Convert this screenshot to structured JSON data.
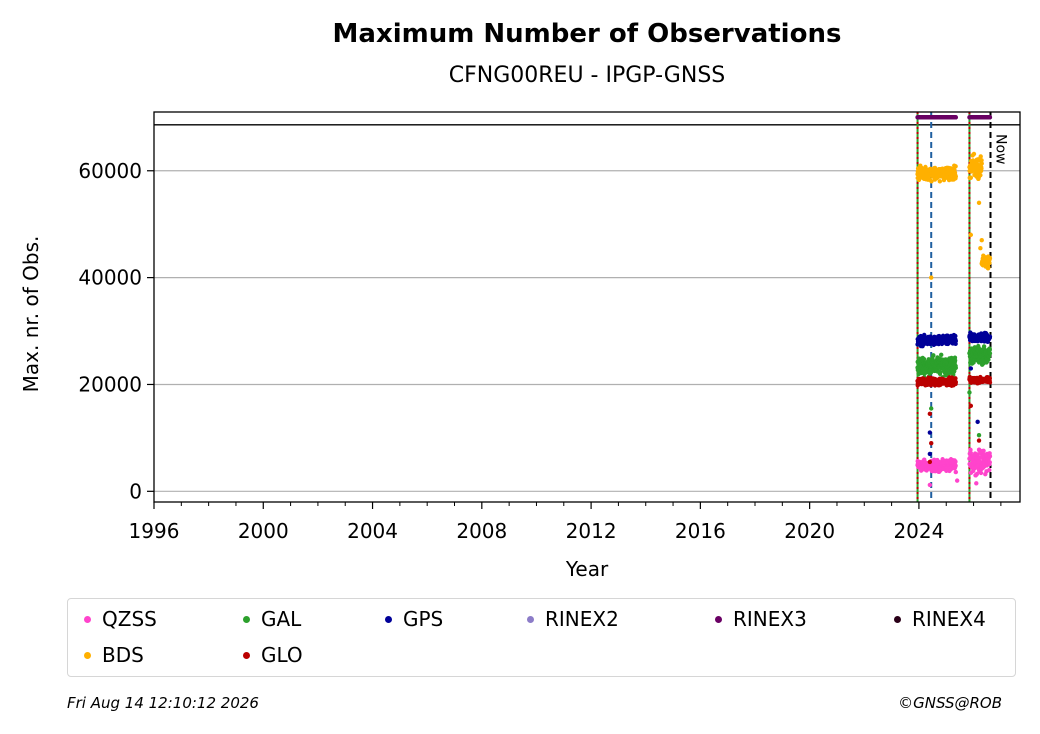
{
  "chart_data": {
    "type": "scatter",
    "title": "Maximum Number of Observations",
    "subtitle": "CFNG00REU - IPGP-GNSS",
    "xlabel": "Year",
    "ylabel": "Max. nr. of Obs.",
    "xlim": [
      1996,
      2027.7
    ],
    "ylim": [
      -2000,
      71000
    ],
    "x_ticks": [
      1996,
      2000,
      2004,
      2008,
      2012,
      2016,
      2020,
      2024
    ],
    "y_ticks": [
      0,
      20000,
      40000,
      60000
    ],
    "y_tick_labels": [
      "0",
      "20000",
      "40000",
      "60000"
    ],
    "grid": "horizontal",
    "legend_position": "bottom",
    "series": [
      {
        "name": "QZSS",
        "color": "#ff44cc",
        "segments": [
          {
            "x0": 2023.95,
            "x1": 2025.35,
            "y_min": 3000,
            "y_max": 6000,
            "center": 4800
          },
          {
            "x0": 2025.85,
            "x1": 2026.6,
            "y_min": 3000,
            "y_max": 9000,
            "center": 5500
          }
        ],
        "outliers": [
          [
            2024.4,
            1200
          ],
          [
            2025.4,
            2000
          ],
          [
            2026.1,
            1500
          ]
        ]
      },
      {
        "name": "GAL",
        "color": "#2ca02c",
        "segments": [
          {
            "x0": 2023.95,
            "x1": 2025.35,
            "y_min": 21000,
            "y_max": 26000,
            "center": 23500
          },
          {
            "x0": 2025.85,
            "x1": 2026.6,
            "y_min": 23500,
            "y_max": 28000,
            "center": 25500
          }
        ],
        "outliers": [
          [
            2024.45,
            15500
          ],
          [
            2025.85,
            18500
          ],
          [
            2026.2,
            10500
          ]
        ]
      },
      {
        "name": "GPS",
        "color": "#000099",
        "segments": [
          {
            "x0": 2023.95,
            "x1": 2025.35,
            "y_min": 27000,
            "y_max": 29500,
            "center": 28200
          },
          {
            "x0": 2025.85,
            "x1": 2026.6,
            "y_min": 27500,
            "y_max": 30000,
            "center": 28800
          }
        ],
        "outliers": [
          [
            2024.4,
            11000
          ],
          [
            2024.4,
            7000
          ],
          [
            2025.9,
            23000
          ],
          [
            2026.15,
            13000
          ],
          [
            2024.45,
            20000
          ]
        ]
      },
      {
        "name": "RINEX2",
        "color": "#8c7cc8",
        "segments": [],
        "outliers": []
      },
      {
        "name": "RINEX3",
        "color": "#6a0064",
        "segments": [
          {
            "x0": 2023.95,
            "x1": 2025.35,
            "y_min": 70000,
            "y_max": 70000,
            "center": 70000
          },
          {
            "x0": 2025.85,
            "x1": 2026.6,
            "y_min": 70000,
            "y_max": 70000,
            "center": 70000
          }
        ],
        "outliers": []
      },
      {
        "name": "RINEX4",
        "color": "#2a0018",
        "segments": [],
        "outliers": []
      },
      {
        "name": "BDS",
        "color": "#ffb000",
        "segments": [
          {
            "x0": 2023.95,
            "x1": 2025.35,
            "y_min": 58000,
            "y_max": 61500,
            "center": 59500
          },
          {
            "x0": 2025.85,
            "x1": 2026.3,
            "y_min": 58500,
            "y_max": 66000,
            "center": 60500
          },
          {
            "x0": 2026.3,
            "x1": 2026.6,
            "y_min": 41500,
            "y_max": 44500,
            "center": 43000
          }
        ],
        "outliers": [
          [
            2024.45,
            40000
          ],
          [
            2025.9,
            48000
          ],
          [
            2026.2,
            54000
          ],
          [
            2026.3,
            47000
          ],
          [
            2026.25,
            45500
          ]
        ]
      },
      {
        "name": "GLO",
        "color": "#bb0000",
        "segments": [
          {
            "x0": 2023.95,
            "x1": 2025.35,
            "y_min": 19500,
            "y_max": 21500,
            "center": 20500
          },
          {
            "x0": 2025.85,
            "x1": 2026.6,
            "y_min": 20000,
            "y_max": 21500,
            "center": 20800
          }
        ],
        "outliers": [
          [
            2024.4,
            14500
          ],
          [
            2024.45,
            9000
          ],
          [
            2024.4,
            5500
          ],
          [
            2025.9,
            16000
          ],
          [
            2026.2,
            9500
          ]
        ]
      }
    ],
    "vlines": [
      {
        "x": 2023.95,
        "color": "#2ca02c",
        "style": "solid"
      },
      {
        "x": 2023.95,
        "color": "#bb0000",
        "style": "dotted"
      },
      {
        "x": 2024.45,
        "color": "#1f5fa0",
        "style": "dashed"
      },
      {
        "x": 2025.85,
        "color": "#2ca02c",
        "style": "solid"
      },
      {
        "x": 2025.85,
        "color": "#bb0000",
        "style": "dotted"
      },
      {
        "x": 2026.62,
        "color": "#000000",
        "style": "dashed",
        "label": "Now"
      }
    ],
    "hlines": [
      {
        "y": 68600,
        "color": "#000000",
        "style": "solid"
      }
    ]
  },
  "legend": {
    "items": [
      {
        "label": "QZSS",
        "color": "#ff44cc"
      },
      {
        "label": "GAL",
        "color": "#2ca02c"
      },
      {
        "label": "GPS",
        "color": "#000099"
      },
      {
        "label": "RINEX2",
        "color": "#8c7cc8"
      },
      {
        "label": "RINEX3",
        "color": "#6a0064"
      },
      {
        "label": "RINEX4",
        "color": "#2a0018"
      },
      {
        "label": "BDS",
        "color": "#ffb000"
      },
      {
        "label": "GLO",
        "color": "#bb0000"
      }
    ]
  },
  "footer": {
    "timestamp": "Fri Aug 14 12:10:12 2026",
    "copyright": "©GNSS@ROB"
  }
}
